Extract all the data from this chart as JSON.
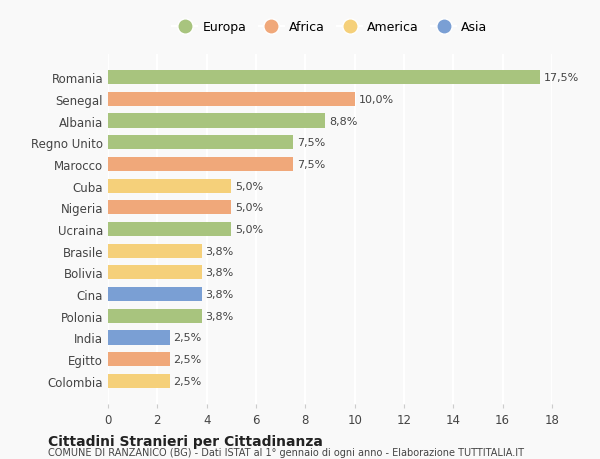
{
  "countries": [
    "Romania",
    "Senegal",
    "Albania",
    "Regno Unito",
    "Marocco",
    "Cuba",
    "Nigeria",
    "Ucraina",
    "Brasile",
    "Bolivia",
    "Cina",
    "Polonia",
    "India",
    "Egitto",
    "Colombia"
  ],
  "values": [
    17.5,
    10.0,
    8.8,
    7.5,
    7.5,
    5.0,
    5.0,
    5.0,
    3.8,
    3.8,
    3.8,
    3.8,
    2.5,
    2.5,
    2.5
  ],
  "continents": [
    "Europa",
    "Africa",
    "Europa",
    "Europa",
    "Africa",
    "America",
    "Africa",
    "Europa",
    "America",
    "America",
    "Asia",
    "Europa",
    "Asia",
    "Africa",
    "America"
  ],
  "labels": [
    "17,5%",
    "10,0%",
    "8,8%",
    "7,5%",
    "7,5%",
    "5,0%",
    "5,0%",
    "5,0%",
    "3,8%",
    "3,8%",
    "3,8%",
    "3,8%",
    "2,5%",
    "2,5%",
    "2,5%"
  ],
  "colors": {
    "Europa": "#a8c47e",
    "Africa": "#f0a87a",
    "America": "#f5d07a",
    "Asia": "#7a9fd4"
  },
  "legend_labels": [
    "Europa",
    "Africa",
    "America",
    "Asia"
  ],
  "title": "Cittadini Stranieri per Cittadinanza",
  "subtitle": "COMUNE DI RANZANICO (BG) - Dati ISTAT al 1° gennaio di ogni anno - Elaborazione TUTTITALIA.IT",
  "xlim": [
    0,
    18
  ],
  "xticks": [
    0,
    2,
    4,
    6,
    8,
    10,
    12,
    14,
    16,
    18
  ],
  "background_color": "#f9f9f9",
  "grid_color": "#ffffff"
}
